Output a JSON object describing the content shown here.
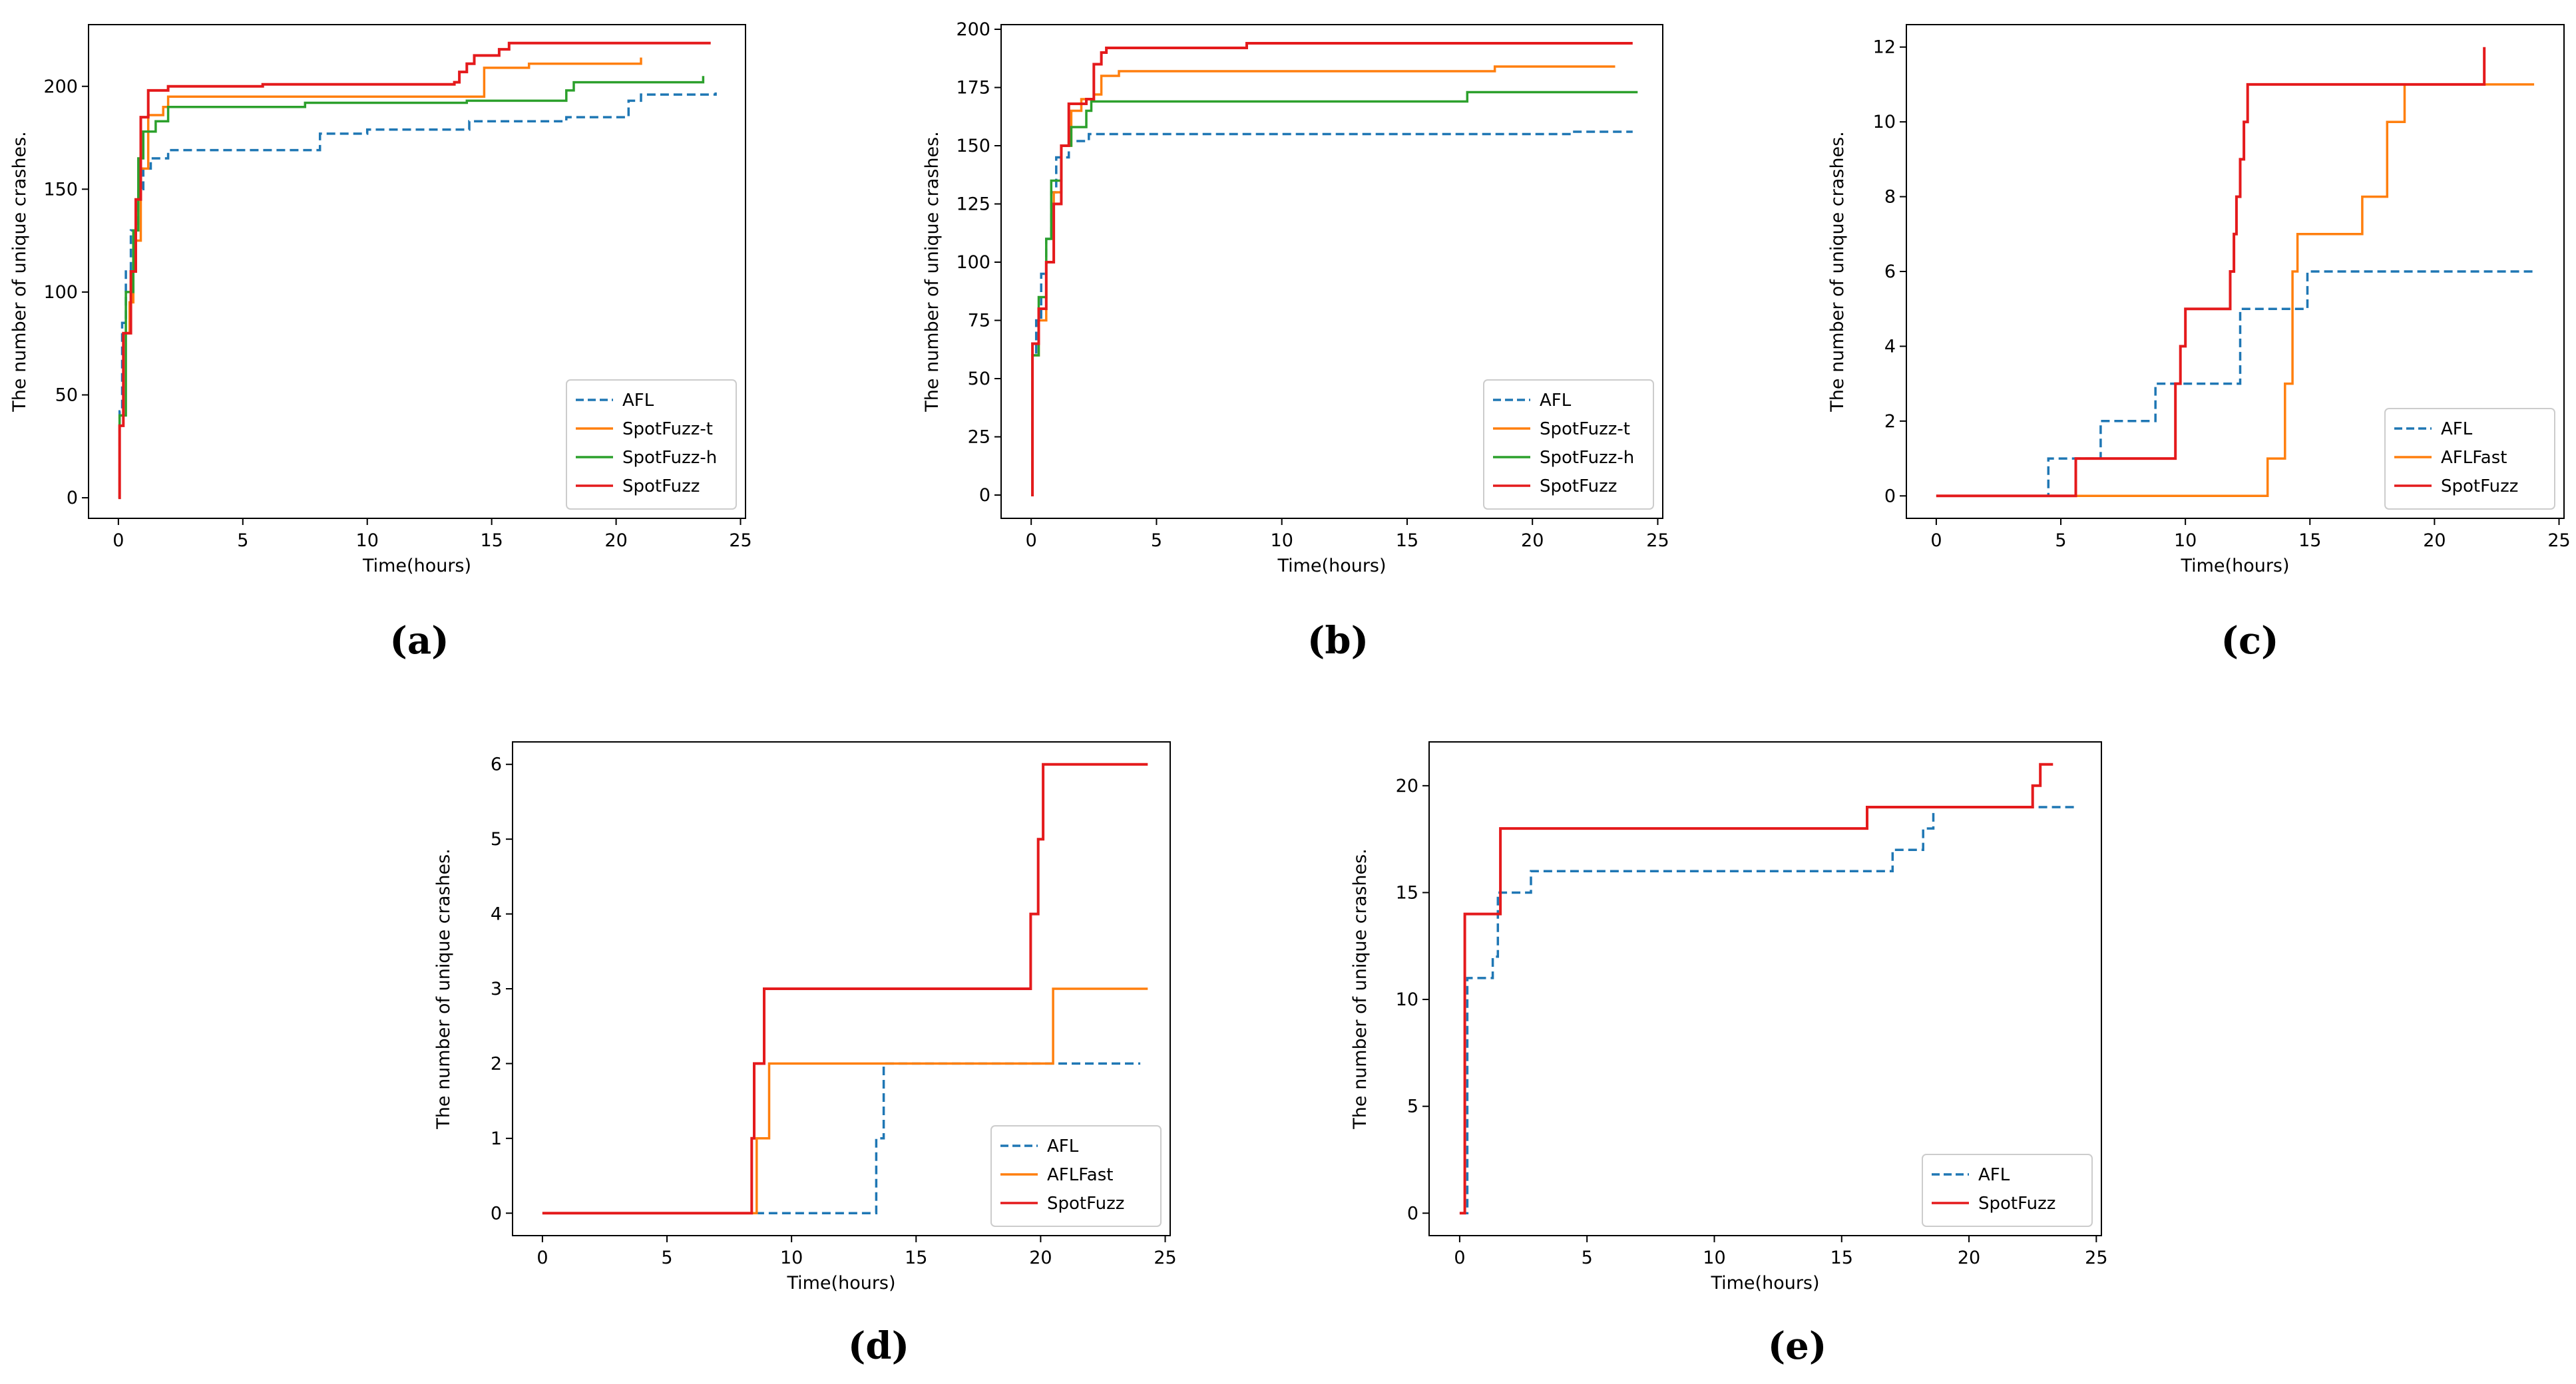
{
  "figure": {
    "colors": {
      "AFL": "#1f77b4",
      "SpotFuzz-t": "#ff7f0e",
      "SpotFuzz-h": "#2ca02c",
      "SpotFuzz": "#e41a1c",
      "AFLFast": "#ff7f0e"
    }
  },
  "chart_data": [
    {
      "id": "a",
      "caption": "(a)",
      "type": "line",
      "xlabel": "Time(hours)",
      "ylabel": "The number of unique crashes.",
      "xlim": [
        -1.2,
        25.2
      ],
      "ylim": [
        -10,
        230
      ],
      "xticks": [
        0,
        5,
        10,
        15,
        20,
        25
      ],
      "yticks": [
        0,
        50,
        100,
        150,
        200
      ],
      "legend_position": "lower-right",
      "series": [
        {
          "name": "AFL",
          "style": "dashed",
          "steps": true,
          "points": [
            [
              0,
              0
            ],
            [
              0.05,
              42
            ],
            [
              0.15,
              85
            ],
            [
              0.3,
              110
            ],
            [
              0.5,
              130
            ],
            [
              0.8,
              150
            ],
            [
              1.0,
              160
            ],
            [
              1.3,
              165
            ],
            [
              2.0,
              169
            ],
            [
              8.0,
              169
            ],
            [
              8.1,
              177
            ],
            [
              10.0,
              179
            ],
            [
              14.0,
              179
            ],
            [
              14.1,
              183
            ],
            [
              18.0,
              185
            ],
            [
              20.3,
              185
            ],
            [
              20.5,
              193
            ],
            [
              21.0,
              196
            ],
            [
              24.0,
              197
            ]
          ]
        },
        {
          "name": "SpotFuzz-t",
          "style": "solid",
          "steps": true,
          "points": [
            [
              0,
              0
            ],
            [
              0.05,
              40
            ],
            [
              0.2,
              80
            ],
            [
              0.45,
              95
            ],
            [
              0.6,
              125
            ],
            [
              0.9,
              160
            ],
            [
              1.2,
              186
            ],
            [
              1.8,
              190
            ],
            [
              2.0,
              195
            ],
            [
              14.5,
              195
            ],
            [
              14.7,
              209
            ],
            [
              16.5,
              211
            ],
            [
              20.8,
              211
            ],
            [
              21.0,
              214
            ]
          ]
        },
        {
          "name": "SpotFuzz-h",
          "style": "solid",
          "steps": true,
          "points": [
            [
              0,
              0
            ],
            [
              0.05,
              40
            ],
            [
              0.3,
              100
            ],
            [
              0.6,
              130
            ],
            [
              0.8,
              165
            ],
            [
              1.0,
              178
            ],
            [
              1.5,
              183
            ],
            [
              2.0,
              190
            ],
            [
              7.3,
              190
            ],
            [
              7.5,
              192
            ],
            [
              14.0,
              193
            ],
            [
              17.8,
              193
            ],
            [
              18.0,
              198
            ],
            [
              18.3,
              202
            ],
            [
              23.3,
              202
            ],
            [
              23.5,
              205
            ]
          ]
        },
        {
          "name": "SpotFuzz",
          "style": "solid",
          "steps": true,
          "points": [
            [
              0,
              0
            ],
            [
              0.05,
              35
            ],
            [
              0.2,
              80
            ],
            [
              0.5,
              110
            ],
            [
              0.7,
              145
            ],
            [
              0.9,
              185
            ],
            [
              1.2,
              198
            ],
            [
              2.0,
              200
            ],
            [
              5.7,
              200
            ],
            [
              5.8,
              201
            ],
            [
              13.5,
              202
            ],
            [
              13.7,
              207
            ],
            [
              14.0,
              211
            ],
            [
              14.3,
              215
            ],
            [
              15.3,
              218
            ],
            [
              15.7,
              221
            ],
            [
              23.8,
              221
            ]
          ]
        }
      ]
    },
    {
      "id": "b",
      "caption": "(b)",
      "type": "line",
      "xlabel": "Time(hours)",
      "ylabel": "The number of unique crashes.",
      "xlim": [
        -1.2,
        25.2
      ],
      "ylim": [
        -10,
        202
      ],
      "xticks": [
        0,
        5,
        10,
        15,
        20,
        25
      ],
      "yticks": [
        0,
        25,
        50,
        75,
        100,
        125,
        150,
        175,
        200
      ],
      "legend_position": "lower-right",
      "series": [
        {
          "name": "AFL",
          "style": "dashed",
          "steps": true,
          "points": [
            [
              0,
              0
            ],
            [
              0.05,
              60
            ],
            [
              0.2,
              75
            ],
            [
              0.4,
              95
            ],
            [
              0.6,
              110
            ],
            [
              0.8,
              130
            ],
            [
              1.0,
              145
            ],
            [
              1.5,
              152
            ],
            [
              2.3,
              155
            ],
            [
              21.5,
              155
            ],
            [
              21.6,
              156
            ],
            [
              24.0,
              156
            ]
          ]
        },
        {
          "name": "SpotFuzz-t",
          "style": "solid",
          "steps": true,
          "points": [
            [
              0,
              0
            ],
            [
              0.05,
              60
            ],
            [
              0.3,
              75
            ],
            [
              0.6,
              100
            ],
            [
              0.9,
              130
            ],
            [
              1.2,
              150
            ],
            [
              1.6,
              165
            ],
            [
              2.0,
              170
            ],
            [
              2.5,
              172
            ],
            [
              2.8,
              180
            ],
            [
              3.5,
              182
            ],
            [
              18.2,
              182
            ],
            [
              18.5,
              184
            ],
            [
              23.3,
              184
            ]
          ]
        },
        {
          "name": "SpotFuzz-h",
          "style": "solid",
          "steps": true,
          "points": [
            [
              0,
              0
            ],
            [
              0.05,
              60
            ],
            [
              0.3,
              85
            ],
            [
              0.6,
              110
            ],
            [
              0.8,
              135
            ],
            [
              1.2,
              150
            ],
            [
              1.6,
              158
            ],
            [
              2.2,
              165
            ],
            [
              2.4,
              169
            ],
            [
              17.2,
              169
            ],
            [
              17.4,
              173
            ],
            [
              24.2,
              173
            ]
          ]
        },
        {
          "name": "SpotFuzz",
          "style": "solid",
          "steps": true,
          "points": [
            [
              0,
              0
            ],
            [
              0.05,
              65
            ],
            [
              0.3,
              80
            ],
            [
              0.6,
              100
            ],
            [
              0.9,
              125
            ],
            [
              1.2,
              150
            ],
            [
              1.5,
              168
            ],
            [
              2.2,
              170
            ],
            [
              2.5,
              185
            ],
            [
              2.8,
              190
            ],
            [
              3.0,
              192
            ],
            [
              8.5,
              192
            ],
            [
              8.6,
              194
            ],
            [
              24.0,
              194
            ]
          ]
        }
      ]
    },
    {
      "id": "c",
      "caption": "(c)",
      "type": "line",
      "xlabel": "Time(hours)",
      "ylabel": "The number of unique crashes.",
      "xlim": [
        -1.2,
        25.2
      ],
      "ylim": [
        -0.6,
        12.6
      ],
      "xticks": [
        0,
        5,
        10,
        15,
        20,
        25
      ],
      "yticks": [
        0,
        2,
        4,
        6,
        8,
        10,
        12
      ],
      "legend_position": "lower-right",
      "series": [
        {
          "name": "AFL",
          "style": "dashed",
          "steps": true,
          "points": [
            [
              0,
              0
            ],
            [
              4.5,
              0
            ],
            [
              4.5,
              1
            ],
            [
              6.6,
              1
            ],
            [
              6.6,
              2
            ],
            [
              8.8,
              2
            ],
            [
              8.8,
              3
            ],
            [
              12.2,
              3
            ],
            [
              12.2,
              5
            ],
            [
              14.9,
              5
            ],
            [
              14.9,
              6
            ],
            [
              24.0,
              6
            ]
          ]
        },
        {
          "name": "AFLFast",
          "style": "solid",
          "steps": true,
          "points": [
            [
              0,
              0
            ],
            [
              13.3,
              0
            ],
            [
              13.3,
              1
            ],
            [
              14.0,
              1
            ],
            [
              14.0,
              3
            ],
            [
              14.3,
              3
            ],
            [
              14.3,
              6
            ],
            [
              14.5,
              6
            ],
            [
              14.5,
              7
            ],
            [
              17.1,
              7
            ],
            [
              17.1,
              8
            ],
            [
              18.1,
              8
            ],
            [
              18.1,
              10
            ],
            [
              18.8,
              10
            ],
            [
              18.8,
              11
            ],
            [
              24.0,
              11
            ]
          ]
        },
        {
          "name": "SpotFuzz",
          "style": "solid",
          "steps": true,
          "points": [
            [
              0,
              0
            ],
            [
              5.6,
              0
            ],
            [
              5.6,
              1
            ],
            [
              9.6,
              1
            ],
            [
              9.6,
              3
            ],
            [
              9.8,
              3
            ],
            [
              9.8,
              4
            ],
            [
              10.0,
              4
            ],
            [
              10.0,
              5
            ],
            [
              11.8,
              5
            ],
            [
              11.8,
              6
            ],
            [
              11.95,
              6
            ],
            [
              11.95,
              7
            ],
            [
              12.05,
              7
            ],
            [
              12.05,
              8
            ],
            [
              12.2,
              8
            ],
            [
              12.2,
              9
            ],
            [
              12.35,
              9
            ],
            [
              12.35,
              10
            ],
            [
              12.5,
              10
            ],
            [
              12.5,
              11
            ],
            [
              21.6,
              11
            ],
            [
              22.0,
              12
            ]
          ]
        }
      ]
    },
    {
      "id": "d",
      "caption": "(d)",
      "type": "line",
      "xlabel": "Time(hours)",
      "ylabel": "The number of unique crashes.",
      "xlim": [
        -1.2,
        25.2
      ],
      "ylim": [
        -0.3,
        6.3
      ],
      "xticks": [
        0,
        5,
        10,
        15,
        20,
        25
      ],
      "yticks": [
        0,
        1,
        2,
        3,
        4,
        5,
        6
      ],
      "legend_position": "lower-right",
      "series": [
        {
          "name": "AFL",
          "style": "dashed",
          "steps": true,
          "points": [
            [
              0,
              0
            ],
            [
              13.4,
              0
            ],
            [
              13.4,
              1
            ],
            [
              13.7,
              1
            ],
            [
              13.7,
              2
            ],
            [
              24.0,
              2
            ]
          ]
        },
        {
          "name": "AFLFast",
          "style": "solid",
          "steps": true,
          "points": [
            [
              0,
              0
            ],
            [
              8.6,
              0
            ],
            [
              8.6,
              1
            ],
            [
              9.1,
              1
            ],
            [
              9.1,
              2
            ],
            [
              20.5,
              2
            ],
            [
              20.5,
              3
            ],
            [
              24.3,
              3
            ]
          ]
        },
        {
          "name": "SpotFuzz",
          "style": "solid",
          "steps": true,
          "points": [
            [
              0,
              0
            ],
            [
              8.4,
              0
            ],
            [
              8.4,
              1
            ],
            [
              8.5,
              1
            ],
            [
              8.5,
              2
            ],
            [
              8.9,
              2
            ],
            [
              8.9,
              3
            ],
            [
              19.6,
              3
            ],
            [
              19.6,
              4
            ],
            [
              19.9,
              4
            ],
            [
              19.9,
              5
            ],
            [
              20.1,
              5
            ],
            [
              20.1,
              6
            ],
            [
              24.3,
              6
            ]
          ]
        }
      ]
    },
    {
      "id": "e",
      "caption": "(e)",
      "type": "line",
      "xlabel": "Time(hours)",
      "ylabel": "The number of unique crashes.",
      "xlim": [
        -1.2,
        25.2
      ],
      "ylim": [
        -1.05,
        22.05
      ],
      "xticks": [
        0,
        5,
        10,
        15,
        20,
        25
      ],
      "yticks": [
        0,
        5,
        10,
        15,
        20
      ],
      "legend_position": "lower-right",
      "series": [
        {
          "name": "AFL",
          "style": "dashed",
          "steps": true,
          "points": [
            [
              0,
              0
            ],
            [
              0.3,
              0
            ],
            [
              0.3,
              11
            ],
            [
              1.3,
              11
            ],
            [
              1.3,
              12
            ],
            [
              1.5,
              12
            ],
            [
              1.5,
              15
            ],
            [
              2.8,
              15
            ],
            [
              2.8,
              16
            ],
            [
              17.0,
              16
            ],
            [
              17.0,
              17
            ],
            [
              18.2,
              17
            ],
            [
              18.2,
              18
            ],
            [
              18.6,
              18
            ],
            [
              18.6,
              19
            ],
            [
              24.3,
              19
            ]
          ]
        },
        {
          "name": "SpotFuzz",
          "style": "solid",
          "steps": true,
          "points": [
            [
              0,
              0
            ],
            [
              0.2,
              0
            ],
            [
              0.2,
              14
            ],
            [
              1.6,
              14
            ],
            [
              1.6,
              18
            ],
            [
              16.0,
              18
            ],
            [
              16.0,
              19
            ],
            [
              22.5,
              19
            ],
            [
              22.5,
              20
            ],
            [
              22.8,
              20
            ],
            [
              22.8,
              21
            ],
            [
              23.3,
              21
            ]
          ]
        }
      ]
    }
  ]
}
